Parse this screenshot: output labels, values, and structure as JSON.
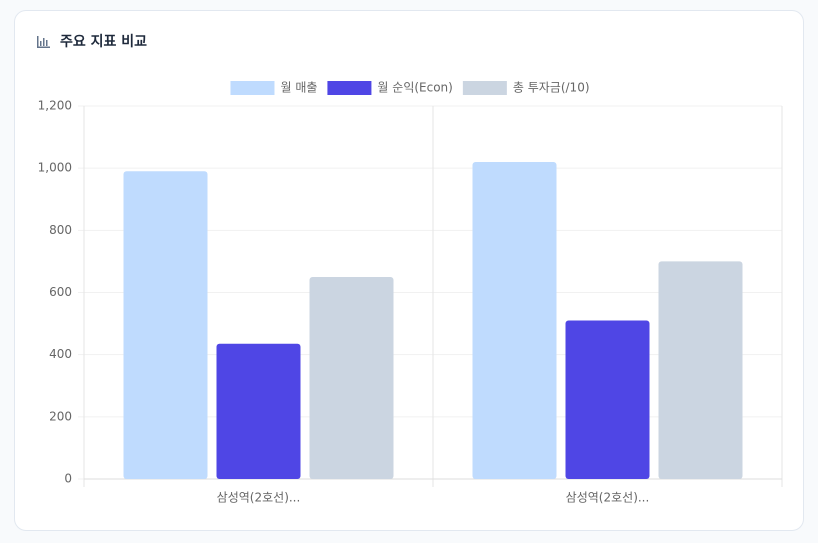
{
  "chart_data": {
    "type": "bar",
    "title": "주요 지표 비교",
    "categories": [
      "삼성역(2호선)...",
      "삼성역(2호선)..."
    ],
    "series": [
      {
        "name": "월 매출",
        "color": "#bfdbfe",
        "values": [
          990,
          1020
        ]
      },
      {
        "name": "월 순익(Econ)",
        "color": "#4f46e5",
        "values": [
          435,
          510
        ]
      },
      {
        "name": "총 투자금(/10)",
        "color": "#cbd5e1",
        "values": [
          650,
          700
        ]
      }
    ],
    "ylim": [
      0,
      1200
    ],
    "yticks": [
      0,
      200,
      400,
      600,
      800,
      {
        "value": 1000,
        "label": "1,000"
      },
      {
        "value": 1200,
        "label": "1,200"
      }
    ],
    "grid": true
  }
}
